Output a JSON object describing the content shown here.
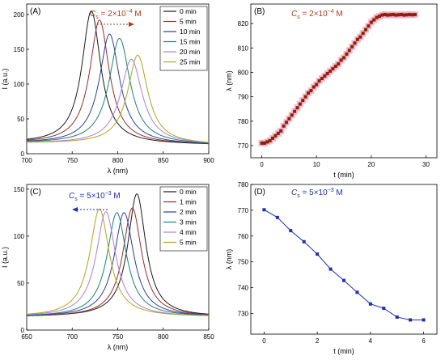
{
  "chart_data": [
    {
      "id": "A",
      "type": "line",
      "panel_label": "(A)",
      "annotation": {
        "var": "C",
        "sub": "s",
        "text": " = 2×10",
        "sup": "−4",
        "unit": " M"
      },
      "annotation_arrow": "right",
      "xlabel": "λ (nm)",
      "ylabel": "I (a.u.)",
      "xlim": [
        700,
        900
      ],
      "ylim": [
        0,
        215
      ],
      "xticks": [
        700,
        750,
        800,
        850,
        900
      ],
      "yticks": [
        0,
        50,
        100,
        150,
        200
      ],
      "legend_position": "top-right",
      "series": [
        {
          "name": "0 min",
          "color": "#1a1a1a",
          "center": 771,
          "peak": 206,
          "width": 12.5
        },
        {
          "name": "5 min",
          "color": "#9b2d2d",
          "center": 780,
          "peak": 193,
          "width": 13
        },
        {
          "name": "10 min",
          "color": "#2b3fa3",
          "center": 791,
          "peak": 173,
          "width": 13.5
        },
        {
          "name": "15 min",
          "color": "#1f7f76",
          "center": 802,
          "peak": 167,
          "width": 14
        },
        {
          "name": "20 min",
          "color": "#b07fd6",
          "center": 815,
          "peak": 137,
          "width": 14.5
        },
        {
          "name": "25 min",
          "color": "#b3a321",
          "center": 822,
          "peak": 143,
          "width": 13.5
        }
      ],
      "baseline": 15,
      "baseline_slope": -0.012
    },
    {
      "id": "B",
      "type": "scatter",
      "panel_label": "(B)",
      "annotation": {
        "var": "C",
        "sub": "s",
        "text": " = 2×10",
        "sup": "−4",
        "unit": " M"
      },
      "xlabel": "t (min)",
      "ylabel": "λ (nm)",
      "xlim": [
        -2,
        32
      ],
      "ylim": [
        765,
        828
      ],
      "xticks": [
        0,
        10,
        20,
        30
      ],
      "yticks": [
        770,
        780,
        790,
        800,
        810,
        820
      ],
      "marker_color": "#8b2500",
      "halo_color": "#f2a6c8",
      "x": [
        0,
        0.5,
        1,
        1.5,
        2,
        2.5,
        3,
        3.5,
        4,
        4.5,
        5,
        5.5,
        6,
        6.5,
        7,
        7.5,
        8,
        8.5,
        9,
        9.5,
        10,
        10.5,
        11,
        11.5,
        12,
        12.5,
        13,
        13.5,
        14,
        14.5,
        15,
        15.5,
        16,
        16.5,
        17,
        17.5,
        18,
        18.5,
        19,
        19.5,
        20,
        20.5,
        21,
        21.5,
        22,
        22.5,
        23,
        23.5,
        24,
        24.5,
        25,
        25.5,
        26,
        26.5,
        27,
        27.5,
        28
      ],
      "y": [
        771,
        771,
        771.5,
        772,
        773,
        774,
        775,
        776,
        778,
        779.5,
        781,
        782.5,
        784,
        785.5,
        787,
        788.5,
        790,
        791.5,
        792.5,
        794,
        795,
        796.5,
        797.5,
        798.5,
        799.5,
        800.5,
        801.5,
        802.5,
        803.5,
        805,
        806,
        807.5,
        809,
        810.5,
        812,
        813.5,
        814.5,
        816,
        817.5,
        819,
        820.5,
        821.5,
        822.5,
        823,
        823.5,
        823.7,
        823.5,
        823.6,
        823.7,
        823.5,
        823.6,
        823.7,
        823.5,
        823.6,
        823.7,
        823.6,
        823.7
      ]
    },
    {
      "id": "C",
      "type": "line",
      "panel_label": "(C)",
      "annotation": {
        "var": "C",
        "sub": "s",
        "text": " = 5×10",
        "sup": "−3",
        "unit": " M"
      },
      "annotation_arrow": "left",
      "xlabel": "λ (nm)",
      "ylabel": "I (a.u.)",
      "xlim": [
        650,
        850
      ],
      "ylim": [
        0,
        155
      ],
      "xticks": [
        650,
        700,
        750,
        800,
        850
      ],
      "yticks": [
        0,
        50,
        100,
        150
      ],
      "legend_position": "top-right",
      "series": [
        {
          "name": "0 min",
          "color": "#1a1a1a",
          "center": 771,
          "peak": 145,
          "width": 12
        },
        {
          "name": "1 min",
          "color": "#9b2d2d",
          "center": 766,
          "peak": 130,
          "width": 12.5
        },
        {
          "name": "2 min",
          "color": "#2b3fa3",
          "center": 757,
          "peak": 125,
          "width": 13
        },
        {
          "name": "3 min",
          "color": "#1f7f76",
          "center": 749,
          "peak": 125,
          "width": 13
        },
        {
          "name": "4 min",
          "color": "#b07fd6",
          "center": 737,
          "peak": 126,
          "width": 13
        },
        {
          "name": "5 min",
          "color": "#b3a321",
          "center": 730,
          "peak": 129,
          "width": 13
        }
      ],
      "baseline": 14,
      "baseline_slope": 0.0
    },
    {
      "id": "D",
      "type": "line",
      "panel_label": "(D)",
      "annotation": {
        "var": "C",
        "sub": "s",
        "text": " = 5×10",
        "sup": "−3",
        "unit": " M"
      },
      "xlabel": "t (min)",
      "ylabel": "λ (nm)",
      "xlim": [
        -0.5,
        6.5
      ],
      "ylim": [
        722,
        780
      ],
      "xticks": [
        0,
        2,
        4,
        6
      ],
      "yticks": [
        730,
        740,
        750,
        760,
        770,
        780
      ],
      "marker_color": "#1f2fb0",
      "x": [
        0,
        0.5,
        1,
        1.5,
        2,
        2.5,
        3,
        3.5,
        4,
        4.5,
        5,
        5.5,
        6
      ],
      "y": [
        770.2,
        767.2,
        762.1,
        757.8,
        753,
        747.2,
        742.8,
        738.2,
        733.7,
        732,
        728.6,
        727.5,
        727.5
      ]
    }
  ]
}
